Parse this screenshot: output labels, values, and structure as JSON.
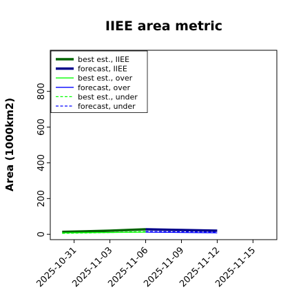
{
  "chart_data": {
    "type": "line",
    "title": "IIEE area metric",
    "xlabel": "",
    "ylabel": "Area (1000km2)",
    "ylim": [
      -30,
      1030
    ],
    "yticks": [
      0,
      200,
      400,
      600,
      800
    ],
    "xlim": [
      "2025-10-29",
      "2025-11-17"
    ],
    "xticks": [
      "2025-10-31",
      "2025-11-03",
      "2025-11-06",
      "2025-11-09",
      "2025-11-12",
      "2025-11-15"
    ],
    "highlighted_xtick": "2025-11-06",
    "highlight_color": "#228b22",
    "grid": false,
    "legend_position": "upper-left",
    "series": [
      {
        "name": "best est., IIEE",
        "color": "#006400",
        "style": "solid",
        "width": 3.5,
        "x": [
          "2025-10-30",
          "2025-11-03",
          "2025-11-06"
        ],
        "y": [
          13,
          20,
          28
        ]
      },
      {
        "name": "forecast, IIEE",
        "color": "#00008b",
        "style": "solid",
        "width": 3.5,
        "x": [
          "2025-11-06",
          "2025-11-09",
          "2025-11-12"
        ],
        "y": [
          28,
          24,
          20
        ]
      },
      {
        "name": "best est., over",
        "color": "#00ff00",
        "style": "solid",
        "width": 1.3,
        "x": [
          "2025-10-30",
          "2025-11-03",
          "2025-11-06"
        ],
        "y": [
          8,
          10,
          12
        ]
      },
      {
        "name": "forecast, over",
        "color": "#0000ff",
        "style": "solid",
        "width": 1.3,
        "x": [
          "2025-11-06",
          "2025-11-09",
          "2025-11-12"
        ],
        "y": [
          12,
          10,
          8
        ]
      },
      {
        "name": "best est., under",
        "color": "#00ff00",
        "style": "dashed",
        "width": 1.3,
        "x": [
          "2025-10-30",
          "2025-11-03",
          "2025-11-06"
        ],
        "y": [
          5,
          10,
          16
        ]
      },
      {
        "name": "forecast, under",
        "color": "#0000ff",
        "style": "dashed",
        "width": 1.3,
        "x": [
          "2025-11-06",
          "2025-11-09",
          "2025-11-12"
        ],
        "y": [
          16,
          14,
          12
        ]
      }
    ]
  }
}
